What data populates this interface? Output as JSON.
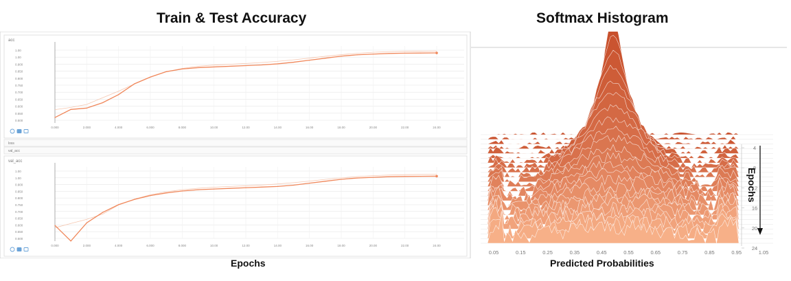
{
  "titles": {
    "left": "Train & Test Accuracy",
    "right": "Softmax Histogram"
  },
  "captions": {
    "left_x": "Epochs",
    "right_x": "Predicted Probabilities",
    "right_axis": "Epochs"
  },
  "colors": {
    "line": "#f0875a",
    "faint": "#f6c7b0",
    "grid": "#e6e6e6",
    "ridge_dark": "#c8502c",
    "ridge_light": "#f7b088"
  },
  "chart_data": [
    {
      "type": "line",
      "title": "acc",
      "x_ticks": [
        "0.000",
        "2.000",
        "4.000",
        "6.000",
        "8.000",
        "10.00",
        "12.00",
        "14.00",
        "16.00",
        "18.00",
        "20.00",
        "22.00",
        "24.00"
      ],
      "y_ticks": [
        "1.00",
        "1.00",
        "0.900",
        "0.850",
        "0.800",
        "0.750",
        "0.700",
        "0.650",
        "0.600",
        "0.550",
        "0.500"
      ],
      "xlim": [
        0,
        24
      ],
      "ylim": [
        0.5,
        1.05
      ],
      "x": [
        0,
        1,
        2,
        3,
        4,
        5,
        6,
        7,
        8,
        9,
        10,
        11,
        12,
        13,
        14,
        15,
        16,
        17,
        18,
        19,
        20,
        21,
        22,
        23,
        24
      ],
      "series": [
        {
          "values": [
            0.52,
            0.58,
            0.59,
            0.63,
            0.69,
            0.77,
            0.82,
            0.86,
            0.88,
            0.89,
            0.895,
            0.9,
            0.905,
            0.91,
            0.918,
            0.93,
            0.945,
            0.96,
            0.975,
            0.985,
            0.99,
            0.995,
            0.997,
            0.998,
            0.999
          ]
        }
      ]
    },
    {
      "type": "line",
      "title": "val_acc",
      "x_ticks": [
        "0.000",
        "2.000",
        "4.000",
        "6.000",
        "8.000",
        "10.00",
        "12.00",
        "14.00",
        "16.00",
        "18.00",
        "20.00",
        "22.00",
        "24.00"
      ],
      "y_ticks": [
        "1.00",
        "1.00",
        "0.900",
        "0.850",
        "0.800",
        "0.750",
        "0.700",
        "0.650",
        "0.600",
        "0.550",
        "0.500"
      ],
      "xlim": [
        0,
        24
      ],
      "ylim": [
        0.5,
        1.05
      ],
      "x": [
        0,
        1,
        2,
        3,
        4,
        5,
        6,
        7,
        8,
        9,
        10,
        11,
        12,
        13,
        14,
        15,
        16,
        17,
        18,
        19,
        20,
        21,
        22,
        23,
        24
      ],
      "series": [
        {
          "values": [
            0.6,
            0.48,
            0.62,
            0.7,
            0.76,
            0.8,
            0.83,
            0.85,
            0.865,
            0.875,
            0.88,
            0.885,
            0.89,
            0.895,
            0.9,
            0.91,
            0.925,
            0.94,
            0.955,
            0.965,
            0.97,
            0.975,
            0.977,
            0.978,
            0.979
          ]
        }
      ]
    },
    {
      "type": "area",
      "title": "",
      "x_ticks": [
        "0.05",
        "0.15",
        "0.25",
        "0.35",
        "0.45",
        "0.55",
        "0.65",
        "0.75",
        "0.85",
        "0.95",
        "1.05"
      ],
      "y_ticks": [
        "4",
        "8",
        "12",
        "16",
        "20",
        "24"
      ]
    }
  ],
  "panels": {
    "left_labels": [
      "loss",
      "val_acc"
    ]
  }
}
